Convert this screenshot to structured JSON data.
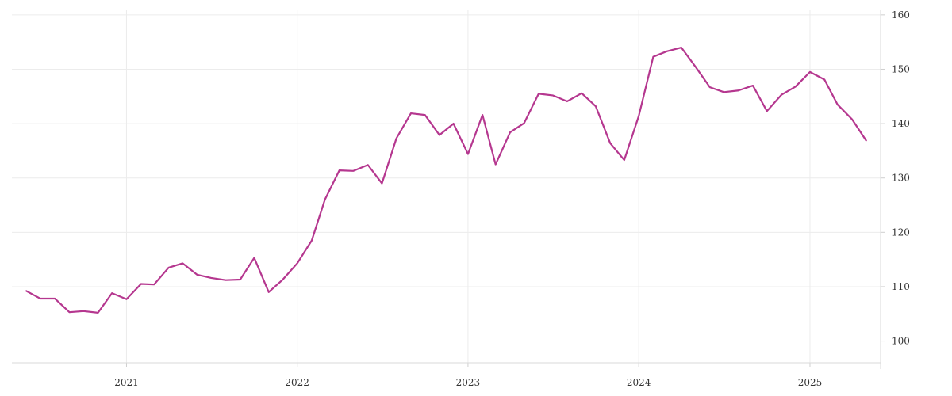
{
  "chart_data": {
    "type": "line",
    "title": "",
    "xlabel": "",
    "ylabel": "",
    "y_axis_side": "right",
    "ylim": [
      96,
      161
    ],
    "y_ticks": [
      100,
      110,
      120,
      130,
      140,
      150,
      160
    ],
    "x_ticks": [
      {
        "label": "2021",
        "date": "2021-01-01"
      },
      {
        "label": "2022",
        "date": "2022-01-01"
      },
      {
        "label": "2023",
        "date": "2023-01-01"
      },
      {
        "label": "2024",
        "date": "2024-01-01"
      },
      {
        "label": "2025",
        "date": "2025-01-01"
      }
    ],
    "xlim": [
      "2020-05-01",
      "2025-06-01"
    ],
    "grid": true,
    "line_color": "#b5378f",
    "series": [
      {
        "points": [
          [
            "2020-06",
            109.2
          ],
          [
            "2020-07",
            107.8
          ],
          [
            "2020-08",
            107.8
          ],
          [
            "2020-09",
            105.3
          ],
          [
            "2020-10",
            105.5
          ],
          [
            "2020-11",
            105.2
          ],
          [
            "2020-12",
            108.8
          ],
          [
            "2021-01",
            107.7
          ],
          [
            "2021-02",
            110.5
          ],
          [
            "2021-03",
            110.4
          ],
          [
            "2021-04",
            113.5
          ],
          [
            "2021-05",
            114.3
          ],
          [
            "2021-06",
            112.2
          ],
          [
            "2021-07",
            111.6
          ],
          [
            "2021-08",
            111.2
          ],
          [
            "2021-09",
            111.3
          ],
          [
            "2021-10",
            115.3
          ],
          [
            "2021-11",
            109.0
          ],
          [
            "2021-12",
            111.3
          ],
          [
            "2022-01",
            114.3
          ],
          [
            "2022-02",
            118.5
          ],
          [
            "2022-03",
            126.0
          ],
          [
            "2022-04",
            131.4
          ],
          [
            "2022-05",
            131.3
          ],
          [
            "2022-06",
            132.4
          ],
          [
            "2022-07",
            129.0
          ],
          [
            "2022-08",
            137.3
          ],
          [
            "2022-09",
            141.9
          ],
          [
            "2022-10",
            141.6
          ],
          [
            "2022-11",
            137.9
          ],
          [
            "2022-12",
            140.0
          ],
          [
            "2023-01",
            134.4
          ],
          [
            "2023-02",
            141.6
          ],
          [
            "2023-03",
            132.5
          ],
          [
            "2023-04",
            138.4
          ],
          [
            "2023-05",
            140.1
          ],
          [
            "2023-06",
            145.5
          ],
          [
            "2023-07",
            145.2
          ],
          [
            "2023-08",
            144.1
          ],
          [
            "2023-09",
            145.6
          ],
          [
            "2023-10",
            143.2
          ],
          [
            "2023-11",
            136.4
          ],
          [
            "2023-12",
            133.3
          ],
          [
            "2024-01",
            141.4
          ],
          [
            "2024-02",
            152.3
          ],
          [
            "2024-03",
            153.3
          ],
          [
            "2024-04",
            154.0
          ],
          [
            "2024-05",
            150.5
          ],
          [
            "2024-06",
            146.7
          ],
          [
            "2024-07",
            145.8
          ],
          [
            "2024-08",
            146.1
          ],
          [
            "2024-09",
            147.0
          ],
          [
            "2024-10",
            142.3
          ],
          [
            "2024-11",
            145.3
          ],
          [
            "2024-12",
            146.8
          ],
          [
            "2025-01",
            149.5
          ],
          [
            "2025-02",
            148.1
          ],
          [
            "2025-03",
            143.5
          ],
          [
            "2025-04",
            140.8
          ],
          [
            "2025-05",
            136.9
          ]
        ]
      }
    ]
  }
}
